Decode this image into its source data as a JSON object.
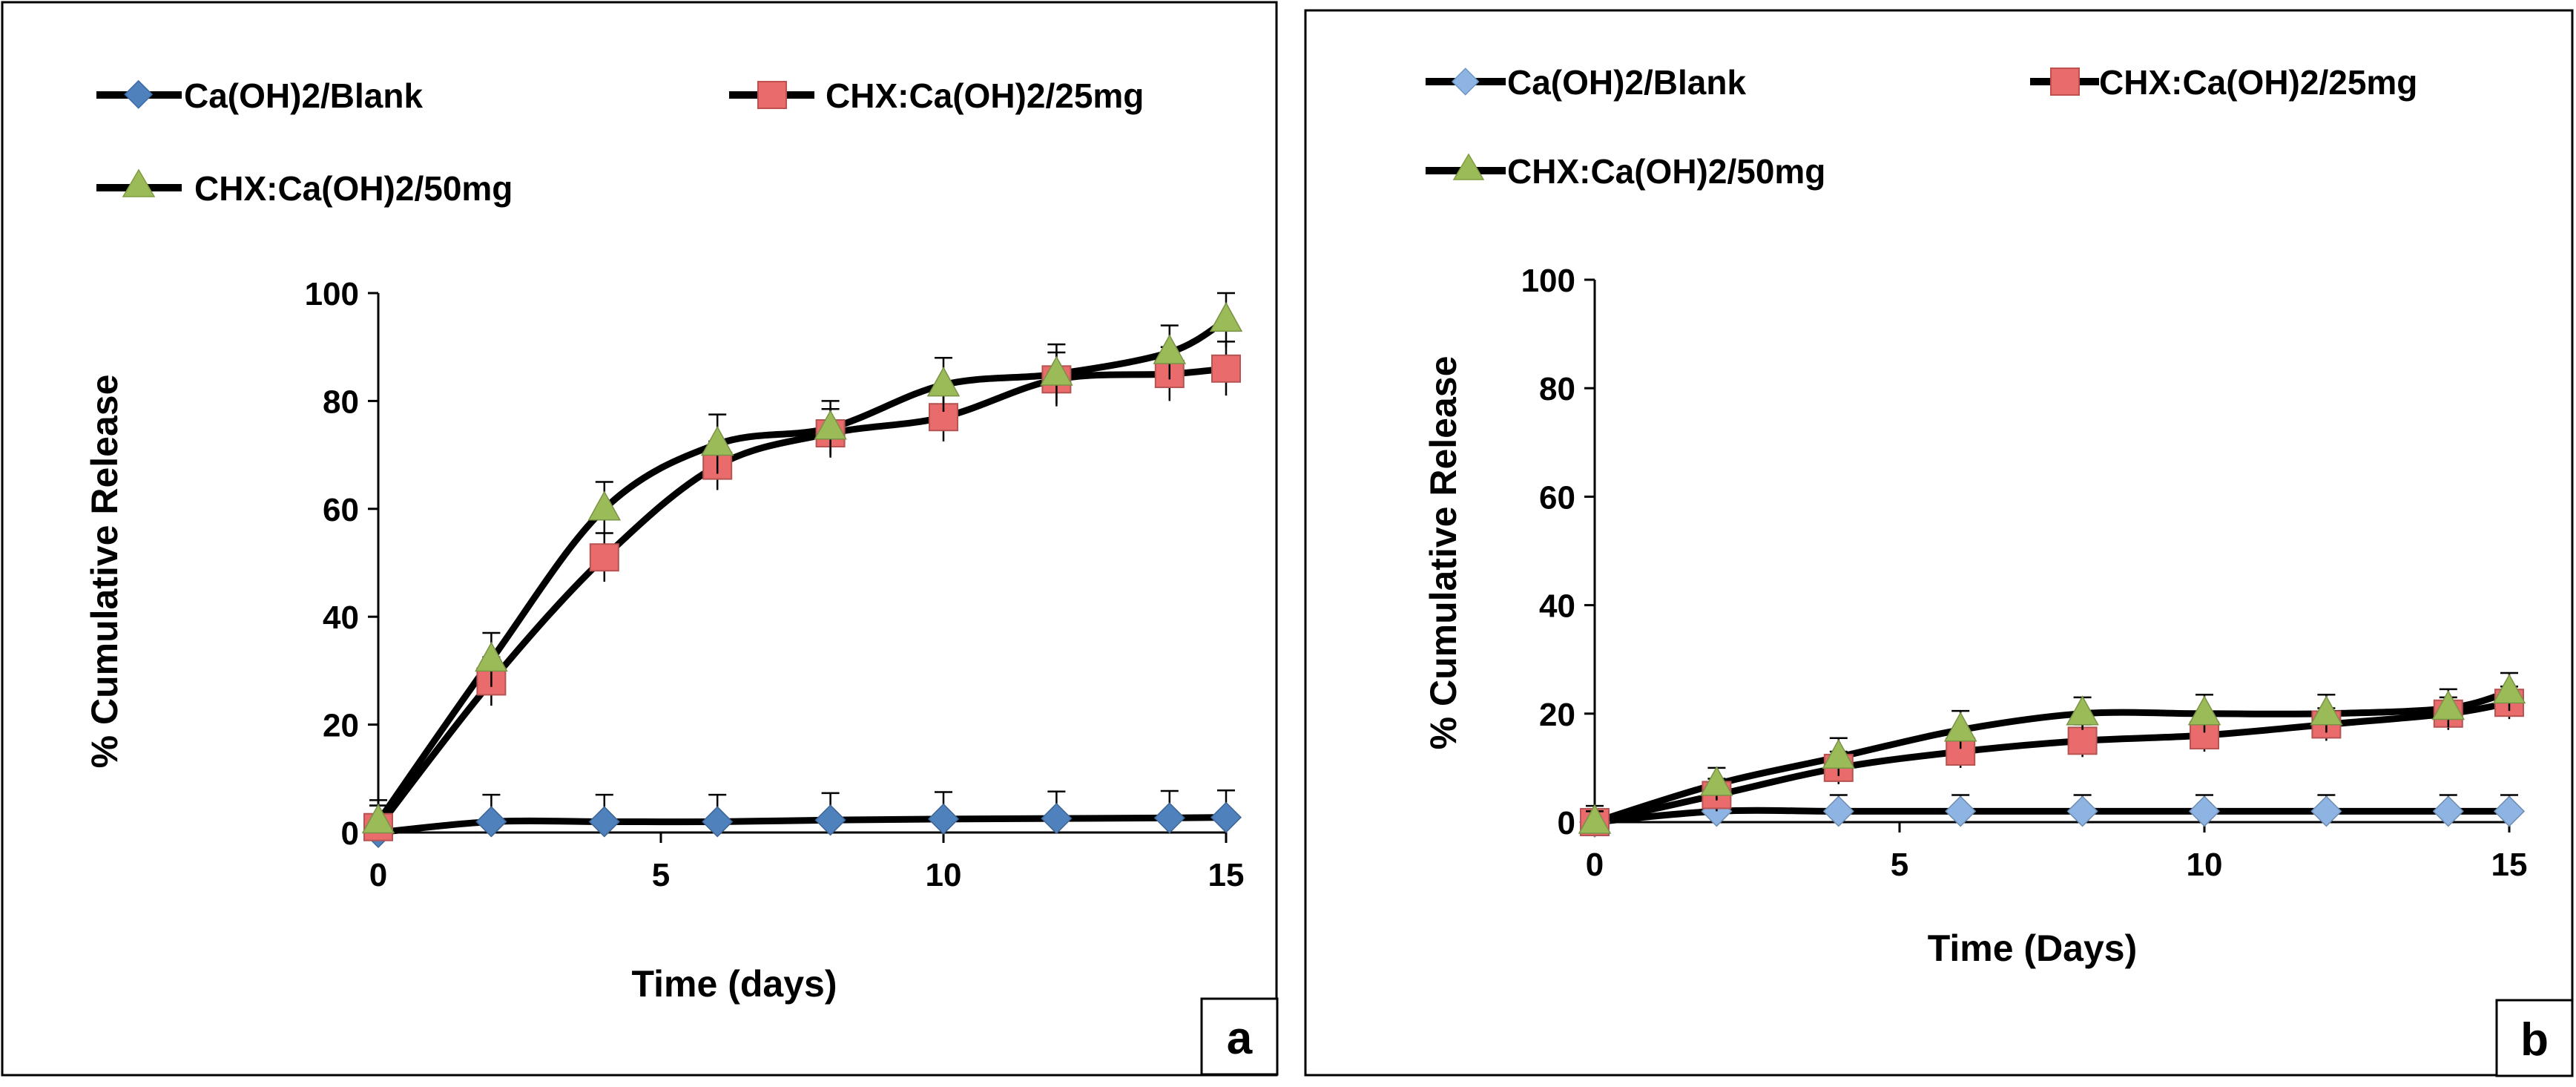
{
  "chart_data": [
    {
      "type": "line",
      "panel_label": "a",
      "xlabel": "Time (days)",
      "ylabel": "% Cumulative Release",
      "xlim": [
        0,
        15
      ],
      "ylim": [
        0,
        100
      ],
      "xticks": [
        0,
        5,
        10,
        15
      ],
      "yticks": [
        0,
        20,
        40,
        60,
        80,
        100
      ],
      "legend_position": "top",
      "series": [
        {
          "name": "Ca(OH)2/Blank",
          "marker": "diamond",
          "color": "#4F81BD",
          "x": [
            0,
            2,
            4,
            6,
            8,
            10,
            12,
            14,
            15
          ],
          "y": [
            0,
            2,
            2,
            2,
            2.3,
            2.5,
            2.6,
            2.7,
            2.8
          ],
          "err": [
            5,
            5,
            5,
            5,
            5,
            5,
            5,
            5,
            5
          ]
        },
        {
          "name": "CHX:Ca(OH)2/25mg",
          "marker": "square",
          "color": "#E96B6B",
          "x": [
            0,
            2,
            4,
            6,
            8,
            10,
            12,
            14,
            15
          ],
          "y": [
            1,
            28,
            51,
            68,
            74,
            77,
            84,
            85,
            86
          ],
          "err": [
            4,
            4.5,
            4.5,
            4.5,
            4.5,
            4.5,
            5,
            5,
            5
          ]
        },
        {
          "name": "CHX:Ca(OH)2/50mg",
          "marker": "triangle",
          "color": "#9BBB59",
          "x": [
            0,
            2,
            4,
            6,
            8,
            10,
            12,
            14,
            15
          ],
          "y": [
            2,
            32,
            60,
            72,
            75,
            83,
            85,
            89,
            95
          ],
          "err": [
            4,
            5,
            5,
            5.5,
            5,
            5,
            5.5,
            5,
            5
          ]
        }
      ]
    },
    {
      "type": "line",
      "panel_label": "b",
      "xlabel": "Time (Days)",
      "ylabel": "% Cumulative Release",
      "xlim": [
        0,
        15
      ],
      "ylim": [
        0,
        100
      ],
      "xticks": [
        0,
        5,
        10,
        15
      ],
      "yticks": [
        0,
        20,
        40,
        60,
        80,
        100
      ],
      "legend_position": "top",
      "series": [
        {
          "name": "Ca(OH)2/Blank",
          "marker": "diamond",
          "color": "#8DB4E2",
          "x": [
            0,
            2,
            4,
            6,
            8,
            10,
            12,
            14,
            15
          ],
          "y": [
            0,
            2,
            2,
            2,
            2,
            2,
            2,
            2,
            2
          ],
          "err": [
            3,
            3,
            3,
            3,
            3,
            3,
            3,
            3,
            3
          ]
        },
        {
          "name": "CHX:Ca(OH)2/25mg",
          "marker": "square",
          "color": "#E96B6B",
          "x": [
            0,
            2,
            4,
            6,
            8,
            10,
            12,
            14,
            15
          ],
          "y": [
            0,
            5,
            10,
            13,
            15,
            16,
            18,
            20,
            22
          ],
          "err": [
            2,
            3,
            3,
            3,
            3,
            3,
            3,
            3,
            3
          ]
        },
        {
          "name": "CHX:Ca(OH)2/50mg",
          "marker": "triangle",
          "color": "#9BBB59",
          "x": [
            0,
            2,
            4,
            6,
            8,
            10,
            12,
            14,
            15
          ],
          "y": [
            0,
            7,
            12,
            17,
            20,
            20,
            20,
            21,
            24
          ],
          "err": [
            2,
            3,
            3.5,
            3.5,
            3,
            3.5,
            3.5,
            3.5,
            3.5
          ]
        }
      ]
    }
  ]
}
